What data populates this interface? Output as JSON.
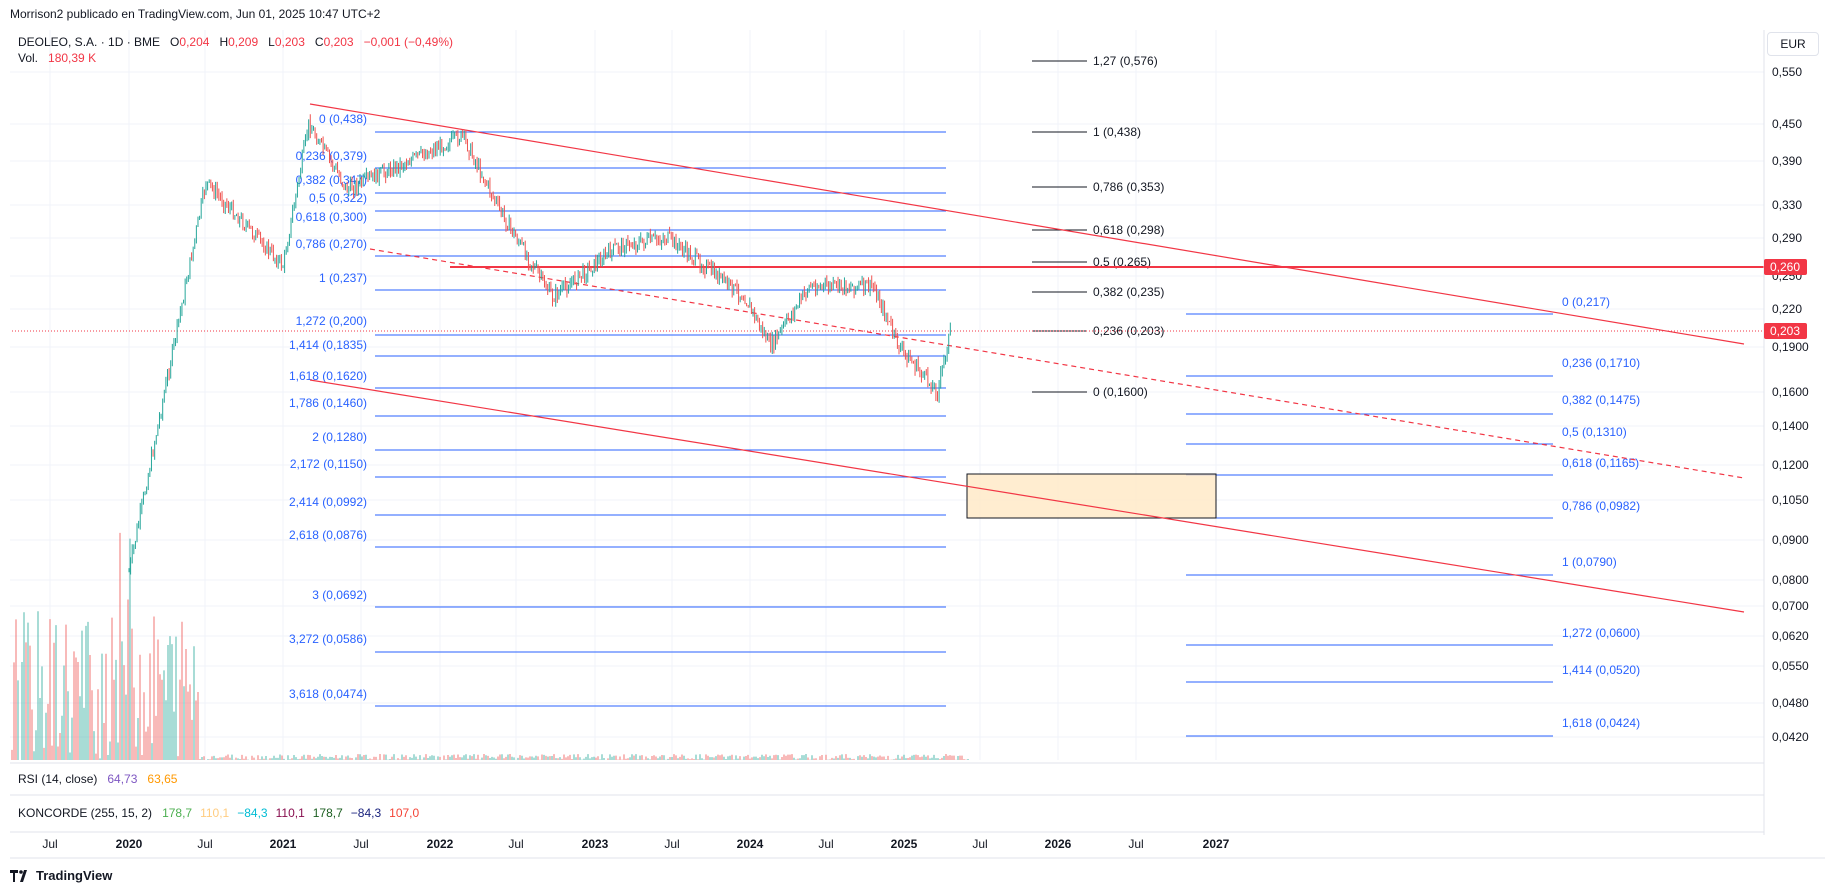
{
  "header": {
    "published": "Morrison2 publicado en TradingView.com, Jun 01, 2025 10:47 UTC+2",
    "symbol": "DEOLEO, S.A. · 1D · BME",
    "o_label": "O",
    "o_value": "0,204",
    "h_label": "H",
    "h_value": "0,209",
    "l_label": "L",
    "l_value": "0,203",
    "c_label": "C",
    "c_value": "0,203",
    "change": "−0,001 (−0,49%)",
    "vol_label": "Vol.",
    "vol_value": "180,39 K"
  },
  "currency": "EUR",
  "indicators": {
    "rsi_label": "RSI (14, close)",
    "rsi_v1": "64,73",
    "rsi_v2": "63,65",
    "konc_label": "KONCORDE (255, 15, 2)",
    "konc_values": [
      {
        "text": "178,7",
        "color": "#4caf50"
      },
      {
        "text": "110,1",
        "color": "#ffcc80"
      },
      {
        "text": "−84,3",
        "color": "#00bcd4"
      },
      {
        "text": "110,1",
        "color": "#880e4f"
      },
      {
        "text": "178,7",
        "color": "#1b5e20"
      },
      {
        "text": "−84,3",
        "color": "#1a237e"
      },
      {
        "text": "107,0",
        "color": "#f44336"
      }
    ]
  },
  "footer": {
    "brand": "TradingView"
  },
  "chart_data": {
    "type": "line",
    "title": "DEOLEO, S.A. · 1D · BME",
    "x_axis_ticks": [
      "Jul",
      "2020",
      "Jul",
      "2021",
      "Jul",
      "2022",
      "Jul",
      "2023",
      "Jul",
      "2024",
      "Jul",
      "2025",
      "Jul",
      "2026",
      "Jul",
      "2027"
    ],
    "x_axis_bold": [
      false,
      true,
      false,
      true,
      false,
      true,
      false,
      true,
      false,
      true,
      false,
      true,
      false,
      true,
      false,
      true
    ],
    "y_axis_ticks": [
      "0,550",
      "0,450",
      "0,390",
      "0,330",
      "0,290",
      "0,250",
      "0,220",
      "0,1900",
      "0,1600",
      "0,1400",
      "0,1200",
      "0,1050",
      "0,0900",
      "0,0800",
      "0,0700",
      "0,0620",
      "0,0550",
      "0,0480",
      "0,0420"
    ],
    "y_scale": "log",
    "price_tags": [
      {
        "text": "0,260",
        "kind": "resistance"
      },
      {
        "text": "0,203",
        "kind": "last"
      }
    ],
    "price_series_approx": [
      {
        "x": "2020-01",
        "y": 0.082
      },
      {
        "x": "2020-07",
        "y": 0.36
      },
      {
        "x": "2021-01",
        "y": 0.26
      },
      {
        "x": "2021-03",
        "y": 0.45
      },
      {
        "x": "2021-06",
        "y": 0.35
      },
      {
        "x": "2022-03",
        "y": 0.43
      },
      {
        "x": "2022-06",
        "y": 0.32
      },
      {
        "x": "2022-10",
        "y": 0.23
      },
      {
        "x": "2023-03",
        "y": 0.28
      },
      {
        "x": "2023-07",
        "y": 0.29
      },
      {
        "x": "2024-01",
        "y": 0.23
      },
      {
        "x": "2024-03",
        "y": 0.19
      },
      {
        "x": "2024-06",
        "y": 0.24
      },
      {
        "x": "2024-11",
        "y": 0.24
      },
      {
        "x": "2025-01",
        "y": 0.19
      },
      {
        "x": "2025-04",
        "y": 0.16
      },
      {
        "x": "2025-05",
        "y": 0.203
      }
    ],
    "fib_left": [
      "0 (0,438)",
      "0,236 (0,379)",
      "0,382 (0,347)",
      "0,5 (0,322)",
      "0,618 (0,300)",
      "0,786 (0,270)",
      "1 (0,237)",
      "1,272 (0,200)",
      "1,414 (0,1835)",
      "1,618 (0,1620)",
      "1,786 (0,1460)",
      "2 (0,1280)",
      "2,172 (0,1150)",
      "2,414 (0,0992)",
      "2,618 (0,0876)",
      "3 (0,0692)",
      "3,272 (0,0586)",
      "3,618 (0,0474)"
    ],
    "fib_middle": [
      "1,27 (0,576)",
      "1 (0,438)",
      "0,786 (0,353)",
      "0,618 (0,298)",
      "0,5 (0,265)",
      "0,382 (0,235)",
      "0,236 (0,203)",
      "0 (0,1600)"
    ],
    "fib_right": [
      "0 (0,217)",
      "0,236 (0,1710)",
      "0,382 (0,1475)",
      "0,5 (0,1310)",
      "0,618 (0,1165)",
      "0,786 (0,0982)",
      "1 (0,0790)",
      "1,272 (0,0600)",
      "1,414 (0,0520)",
      "1,618 (0,0424)"
    ],
    "resistance_level": 0.26,
    "target_zone": [
      0.0985,
      0.117
    ],
    "grid": true,
    "colors": {
      "up": "#26a69a",
      "down": "#ef5350",
      "fib": "#2962ff",
      "trend": "#f23645",
      "black_fib": "#131722",
      "zone_fill": "#ffe9c4"
    }
  }
}
